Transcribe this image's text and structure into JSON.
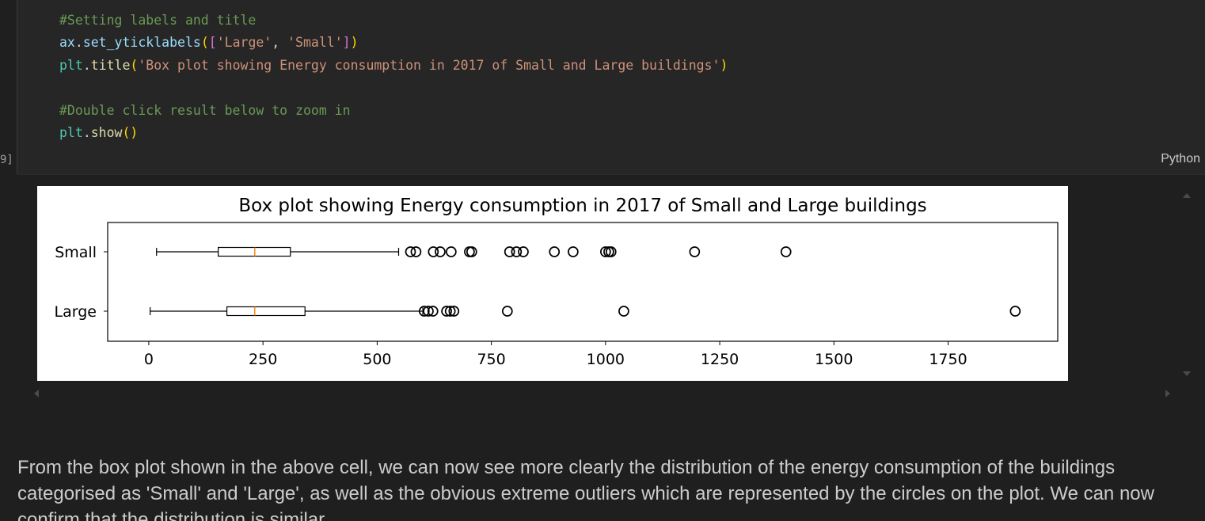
{
  "cell": {
    "execution_count": "9]",
    "language": "Python",
    "code_lines": [
      [
        {
          "t": "#Setting labels and title",
          "c": "comment"
        }
      ],
      [
        {
          "t": "ax",
          "c": "var"
        },
        {
          "t": ".",
          "c": "plain"
        },
        {
          "t": "set_yticklabels",
          "c": "var"
        },
        {
          "t": "(",
          "c": "punc"
        },
        {
          "t": "[",
          "c": "punc2"
        },
        {
          "t": "'Large'",
          "c": "str"
        },
        {
          "t": ", ",
          "c": "plain"
        },
        {
          "t": "'Small'",
          "c": "str"
        },
        {
          "t": "]",
          "c": "punc2"
        },
        {
          "t": ")",
          "c": "punc"
        }
      ],
      [
        {
          "t": "plt",
          "c": "obj"
        },
        {
          "t": ".",
          "c": "plain"
        },
        {
          "t": "title",
          "c": "func"
        },
        {
          "t": "(",
          "c": "punc"
        },
        {
          "t": "'Box plot showing Energy consumption in 2017 of Small and Large buildings'",
          "c": "str"
        },
        {
          "t": ")",
          "c": "punc"
        }
      ],
      [],
      [
        {
          "t": "#Double click result below to zoom in",
          "c": "comment"
        }
      ],
      [
        {
          "t": "plt",
          "c": "obj"
        },
        {
          "t": ".",
          "c": "plain"
        },
        {
          "t": "show",
          "c": "func"
        },
        {
          "t": "()",
          "c": "punc"
        }
      ]
    ]
  },
  "chart_data": {
    "type": "box",
    "orientation": "horizontal",
    "title": "Box plot showing Energy consumption in 2017 of Small and Large buildings",
    "xlim": [
      -90,
      1990
    ],
    "x_ticks": [
      0,
      250,
      500,
      750,
      1000,
      1250,
      1500,
      1750
    ],
    "x_tick_labels": [
      "0",
      "250",
      "500",
      "750",
      "1000",
      "1250",
      "1500",
      "1750"
    ],
    "categories": [
      "Small",
      "Large"
    ],
    "series": [
      {
        "name": "Small",
        "whisker_low": 17,
        "q1": 152,
        "median": 232,
        "q3": 310,
        "whisker_high": 547,
        "outliers": [
          573,
          585,
          623,
          638,
          662,
          702,
          707,
          790,
          805,
          820,
          888,
          929,
          1000,
          1007,
          1012,
          1195,
          1395
        ]
      },
      {
        "name": "Large",
        "whisker_low": 3,
        "q1": 171,
        "median": 232,
        "q3": 342,
        "whisker_high": 600,
        "outliers": [
          603,
          612,
          622,
          652,
          660,
          668,
          785,
          1040,
          1897
        ]
      }
    ],
    "colors": {
      "box": "#000000",
      "median": "#ff7f0e",
      "outlier": "#000000"
    }
  },
  "markdown": {
    "text": "From the box plot shown in the above cell, we can now see more clearly the distribution of the energy consumption of the buildings categorised as 'Small' and 'Large', as well as the obvious extreme outliers which are represented by the circles on the plot. We can now confirm that the distribution is similar."
  }
}
